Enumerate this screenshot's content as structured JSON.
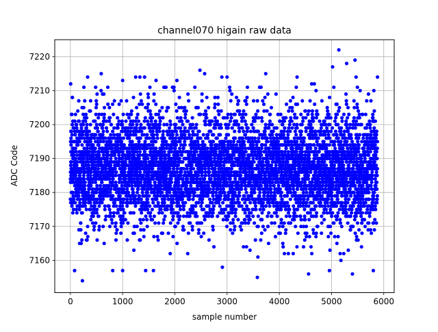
{
  "chart_data": {
    "type": "scatter",
    "title": "channel070 higain raw data",
    "xlabel": "sample number",
    "ylabel": "ADC Code",
    "xlim": [
      -300,
      6200
    ],
    "ylim": [
      7150.5,
      7225
    ],
    "xticks": [
      0,
      1000,
      2000,
      3000,
      4000,
      5000,
      6000
    ],
    "yticks": [
      7160,
      7170,
      7180,
      7190,
      7200,
      7210,
      7220
    ],
    "grid": true,
    "marker_color": "#0000ff",
    "n_samples": 5880,
    "noise_baseline": 7187,
    "noise_spread": 8.5,
    "outliers": [
      {
        "x": 5,
        "y": 7212
      },
      {
        "x": 80,
        "y": 7157
      },
      {
        "x": 230,
        "y": 7154
      },
      {
        "x": 330,
        "y": 7214
      },
      {
        "x": 590,
        "y": 7215
      },
      {
        "x": 1000,
        "y": 7157
      },
      {
        "x": 810,
        "y": 7157
      },
      {
        "x": 1000,
        "y": 7213
      },
      {
        "x": 1250,
        "y": 7214
      },
      {
        "x": 1330,
        "y": 7214
      },
      {
        "x": 1420,
        "y": 7214
      },
      {
        "x": 1440,
        "y": 7157
      },
      {
        "x": 1590,
        "y": 7157
      },
      {
        "x": 1640,
        "y": 7213
      },
      {
        "x": 2040,
        "y": 7213
      },
      {
        "x": 2480,
        "y": 7216
      },
      {
        "x": 2570,
        "y": 7215
      },
      {
        "x": 2910,
        "y": 7158
      },
      {
        "x": 2900,
        "y": 7214
      },
      {
        "x": 3000,
        "y": 7214
      },
      {
        "x": 3580,
        "y": 7155
      },
      {
        "x": 3590,
        "y": 7161
      },
      {
        "x": 3740,
        "y": 7215
      },
      {
        "x": 4340,
        "y": 7214
      },
      {
        "x": 4560,
        "y": 7156
      },
      {
        "x": 4620,
        "y": 7212
      },
      {
        "x": 4670,
        "y": 7212
      },
      {
        "x": 4960,
        "y": 7157
      },
      {
        "x": 5020,
        "y": 7217
      },
      {
        "x": 5140,
        "y": 7222
      },
      {
        "x": 5180,
        "y": 7160
      },
      {
        "x": 5290,
        "y": 7218
      },
      {
        "x": 5400,
        "y": 7156
      },
      {
        "x": 5450,
        "y": 7219
      },
      {
        "x": 5470,
        "y": 7214
      },
      {
        "x": 5800,
        "y": 7157
      },
      {
        "x": 5810,
        "y": 7210
      },
      {
        "x": 5880,
        "y": 7214
      }
    ]
  }
}
